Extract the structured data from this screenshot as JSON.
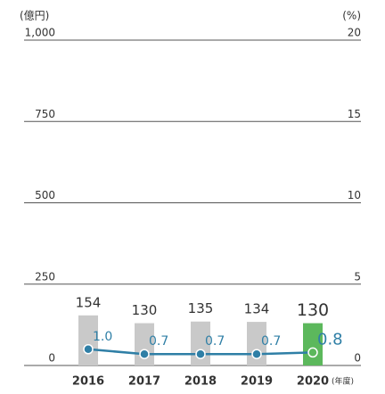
{
  "chart_data": {
    "type": "bar-line",
    "y_label": "(億円)",
    "y2_label": "(%)",
    "x_unit": "(年度)",
    "categories": [
      "2016",
      "2017",
      "2018",
      "2019",
      "2020"
    ],
    "series": [
      {
        "type": "bar",
        "colors": [
          "#c9c9c9",
          "#c9c9c9",
          "#c9c9c9",
          "#c9c9c9",
          "#5cb85c"
        ],
        "values": [
          154,
          130,
          135,
          134,
          130
        ]
      },
      {
        "type": "line",
        "axis": "y2",
        "color": "#2f7fa6",
        "values": [
          1.0,
          0.7,
          0.7,
          0.7,
          0.8
        ],
        "value_labels": [
          "1.0",
          "0.7",
          "0.7",
          "0.7",
          "0.8"
        ]
      }
    ],
    "ylim": [
      0,
      1000
    ],
    "yticks": [
      0,
      250,
      500,
      {
        "value": 750,
        "label": "750"
      },
      {
        "value": 1000,
        "label": "1,000"
      }
    ],
    "y2lim": [
      0,
      20
    ],
    "y2ticks": [
      0,
      5,
      10,
      15,
      20
    ],
    "grid": true
  }
}
